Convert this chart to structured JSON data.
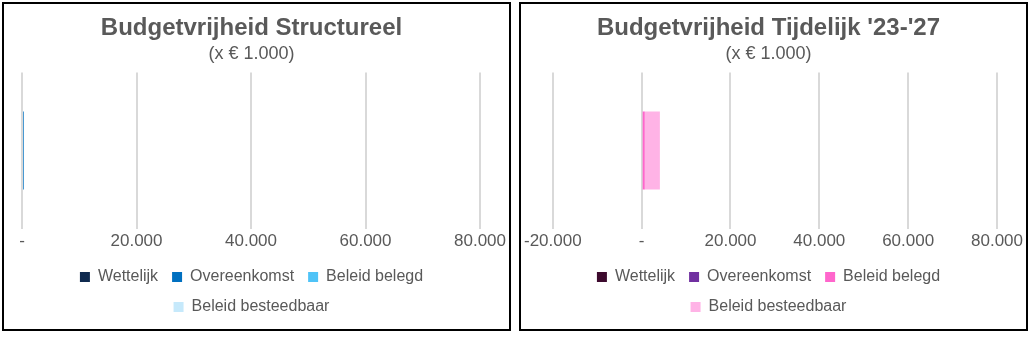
{
  "chart_data": [
    {
      "type": "bar",
      "orientation": "horizontal",
      "stacked": true,
      "title": "Budgetvrijheid Structureel",
      "subtitle": "(x € 1.000)",
      "categories": [
        null
      ],
      "series": [
        {
          "name": "Wettelijk",
          "color": "#0f2a4f",
          "values": [
            0
          ]
        },
        {
          "name": "Overeenkomst",
          "color": "#0070c0",
          "values": [
            300
          ]
        },
        {
          "name": "Beleid belegd",
          "color": "#4fc3f7",
          "values": [
            0
          ]
        },
        {
          "name": "Beleid besteedbaar",
          "color": "#c6e9fb",
          "values": [
            0
          ]
        }
      ],
      "xlim": [
        0,
        80000
      ],
      "xticks": [
        {
          "value": 0,
          "label": "-"
        },
        {
          "value": 20000,
          "label": "20.000"
        },
        {
          "value": 40000,
          "label": "40.000"
        },
        {
          "value": 60000,
          "label": "60.000"
        },
        {
          "value": 80000,
          "label": "80.000"
        }
      ],
      "grid": "x",
      "legend": "bottom",
      "tick_labels": "x"
    },
    {
      "type": "bar",
      "orientation": "horizontal",
      "stacked": true,
      "title": "Budgetvrijheid Tijdelijk '23-'27",
      "subtitle": "(x € 1.000)",
      "categories": [
        null
      ],
      "series": [
        {
          "name": "Wettelijk",
          "color": "#3d0a2e",
          "values": [
            0
          ]
        },
        {
          "name": "Overeenkomst",
          "color": "#7030a0",
          "values": [
            0
          ]
        },
        {
          "name": "Beleid belegd",
          "color": "#ff66cc",
          "values": [
            700
          ]
        },
        {
          "name": "Beleid besteedbaar",
          "color": "#ffb3e6",
          "values": [
            3400
          ]
        }
      ],
      "xlim": [
        -20000,
        80000
      ],
      "xticks": [
        {
          "value": -20000,
          "label": "-20.000"
        },
        {
          "value": 0,
          "label": "-"
        },
        {
          "value": 20000,
          "label": "20.000"
        },
        {
          "value": 40000,
          "label": "40.000"
        },
        {
          "value": 60000,
          "label": "60.000"
        },
        {
          "value": 80000,
          "label": "80.000"
        }
      ],
      "grid": "x",
      "legend": "bottom",
      "tick_labels": "x"
    }
  ]
}
